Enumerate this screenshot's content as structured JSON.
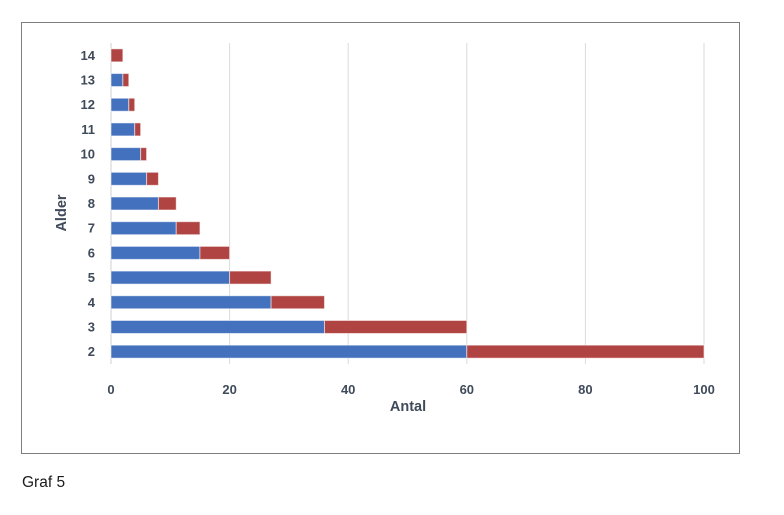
{
  "caption": "Graf 5",
  "chart_data": {
    "type": "bar",
    "orientation": "horizontal",
    "stacked": true,
    "title": "",
    "xlabel": "Antal",
    "ylabel": "Alder",
    "categories": [
      "14",
      "13",
      "12",
      "11",
      "10",
      "9",
      "8",
      "7",
      "6",
      "5",
      "4",
      "3",
      "2"
    ],
    "series": [
      {
        "name": "blue",
        "color": "#4371BD",
        "values": [
          0,
          2,
          3,
          4,
          5,
          6,
          8,
          11,
          15,
          20,
          27,
          36,
          60
        ]
      },
      {
        "name": "red",
        "color": "#B04442",
        "values": [
          2,
          1,
          1,
          1,
          1,
          2,
          3,
          4,
          5,
          7,
          9,
          24,
          40
        ]
      }
    ],
    "totals": [
      2,
      3,
      4,
      5,
      6,
      8,
      11,
      15,
      20,
      27,
      36,
      60,
      100
    ],
    "xlim": [
      0,
      100
    ],
    "xticks": [
      0,
      20,
      40,
      60,
      80,
      100
    ],
    "grid": "vertical",
    "legend": false,
    "colors": {
      "axis_text": "#3F4A5A",
      "gridline": "#DADADA",
      "axis_line": "#CFCFCF",
      "frame_border": "#7E7E7E",
      "bar_edge": "rgba(255,255,255,0.55)"
    }
  }
}
